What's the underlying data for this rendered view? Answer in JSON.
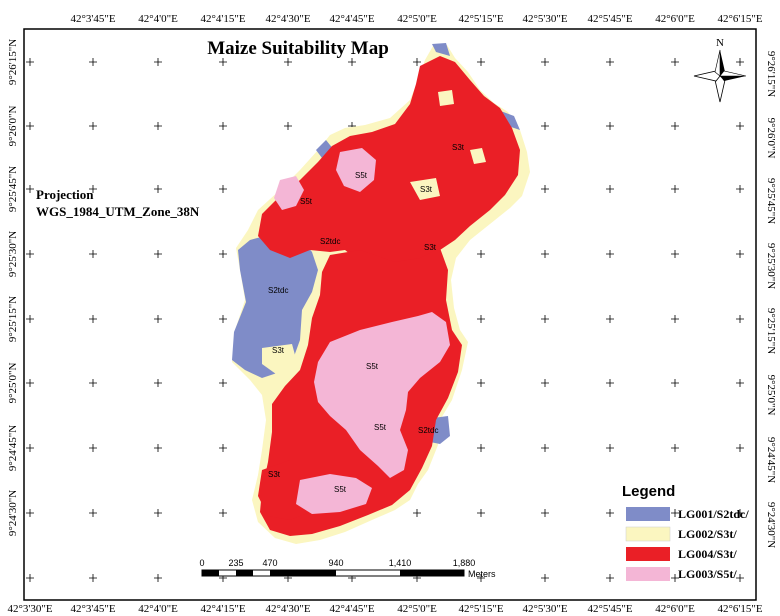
{
  "title": "Maize Suitability Map",
  "projection": {
    "label": "Projection",
    "name": "WGS_1984_UTM_Zone_38N"
  },
  "north_arrow": {
    "label": "N"
  },
  "longitude_labels": [
    "42°3'30\"E",
    "42°3'45\"E",
    "42°4'0\"E",
    "42°4'15\"E",
    "42°4'30\"E",
    "42°4'45\"E",
    "42°5'0\"E",
    "42°5'15\"E",
    "42°5'30\"E",
    "42°5'45\"E",
    "42°6'0\"E",
    "42°6'15\"E"
  ],
  "top_longitude_labels": [
    "42°3'45\"E",
    "42°4'0\"E",
    "42°4'15\"E",
    "42°4'30\"E",
    "42°4'45\"E",
    "42°5'0\"E",
    "42°5'15\"E",
    "42°5'30\"E",
    "42°5'45\"E",
    "42°6'0\"E",
    "42°6'15\"E"
  ],
  "latitude_labels": [
    "9°26'15\"N",
    "9°26'0\"N",
    "9°25'45\"N",
    "9°25'30\"N",
    "9°25'15\"N",
    "9°25'0\"N",
    "9°24'45\"N",
    "9°24'30\"N"
  ],
  "zone_labels": [
    {
      "text": "S3t",
      "key": "s3t_top"
    },
    {
      "text": "S5t",
      "key": "s5t_a"
    },
    {
      "text": "S3t",
      "key": "s3t_b"
    },
    {
      "text": "S5t",
      "key": "s5t_b"
    },
    {
      "text": "S2tdc",
      "key": "s2tdc_a"
    },
    {
      "text": "S3t",
      "key": "s3t_c"
    },
    {
      "text": "S2tdc",
      "key": "s2tdc_b"
    },
    {
      "text": "S3t",
      "key": "s3t_d"
    },
    {
      "text": "S5t",
      "key": "s5t_c"
    },
    {
      "text": "S5t",
      "key": "s5t_d"
    },
    {
      "text": "S2tdc",
      "key": "s2tdc_c"
    },
    {
      "text": "S3t",
      "key": "s3t_e"
    },
    {
      "text": "S5t",
      "key": "s5t_e"
    }
  ],
  "legend": {
    "title": "Legend",
    "items": [
      {
        "label": "LG001/S2tdc/",
        "color": "#7f8cc8"
      },
      {
        "label": "LG002/S3t/",
        "color": "#fbf6c0"
      },
      {
        "label": "LG004/S3t/",
        "color": "#ea1f26"
      },
      {
        "label": "LG003/S5t/",
        "color": "#f4b6d6"
      }
    ]
  },
  "scale_bar": {
    "ticks": [
      "0",
      "235",
      "470",
      "940",
      "1,410",
      "1,880"
    ],
    "unit": "Meters"
  },
  "colors": {
    "s2tdc": "#7f8cc8",
    "s3t_light": "#fbf6c0",
    "s3t_red": "#ea1f26",
    "s5t": "#f4b6d6",
    "frame": "#000000"
  }
}
